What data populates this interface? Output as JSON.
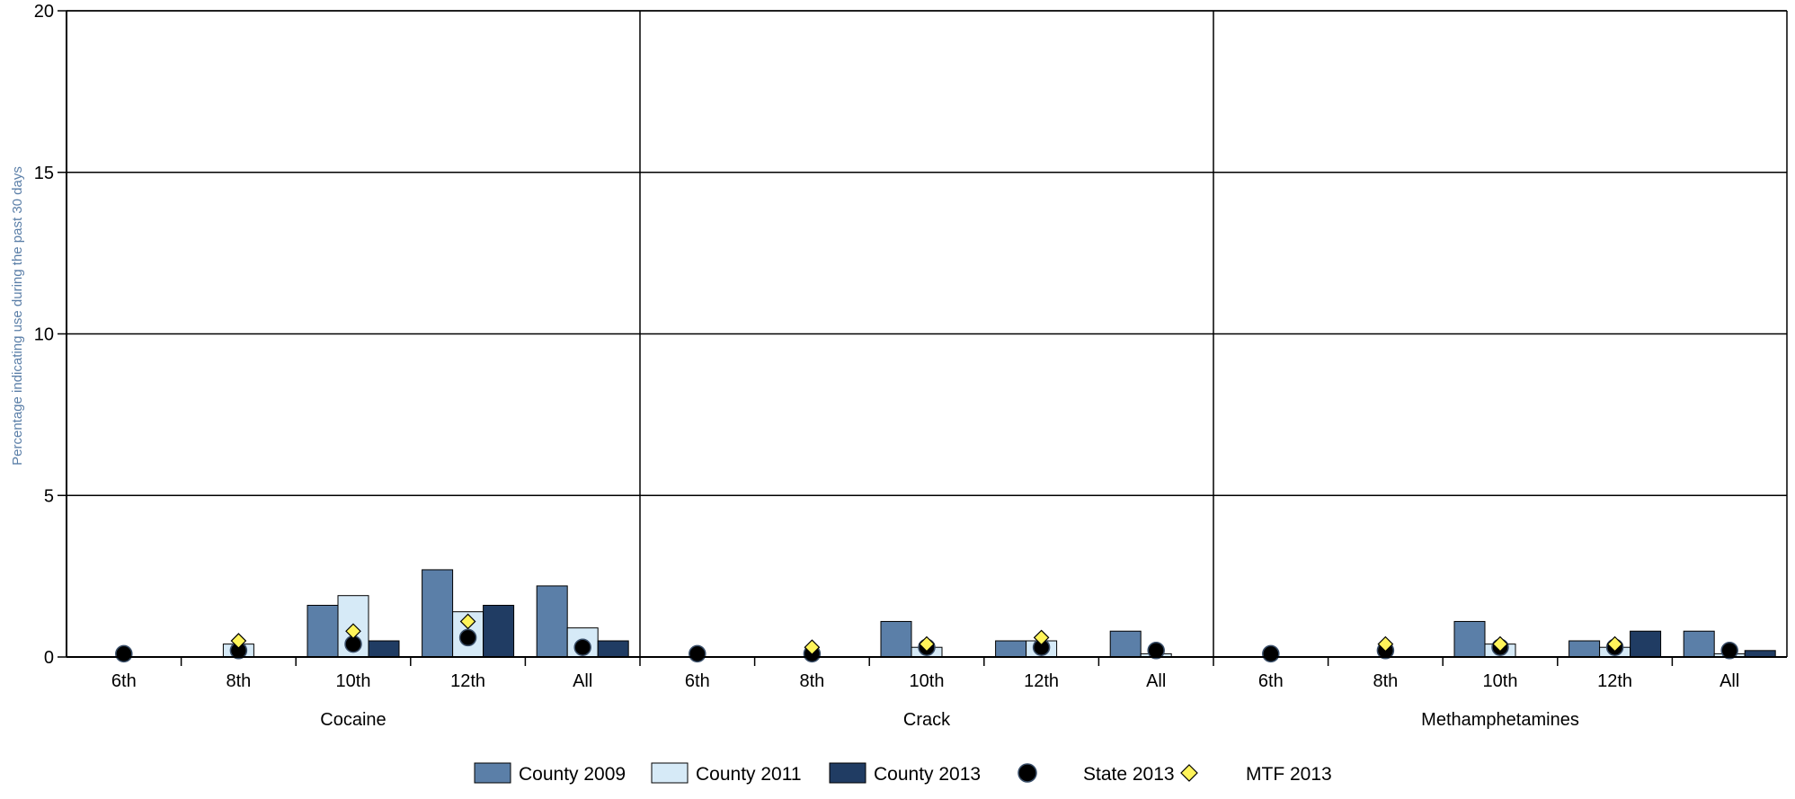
{
  "chart_data": {
    "type": "bar",
    "ylabel": "Percentage indicating use during the past 30 days",
    "ylim": [
      0,
      20
    ],
    "yticks": [
      0,
      5,
      10,
      15,
      20
    ],
    "grid": true,
    "legend_position": "bottom",
    "categories": [
      "6th",
      "8th",
      "10th",
      "12th",
      "All"
    ],
    "groups": [
      "Cocaine",
      "Crack",
      "Methamphetamines"
    ],
    "series": [
      {
        "name": "County 2009",
        "kind": "bar",
        "color": "#5b7fa8",
        "values": [
          [
            0,
            0,
            1.6,
            2.7,
            2.2
          ],
          [
            0,
            0,
            1.1,
            0.5,
            0.8
          ],
          [
            0,
            0,
            1.1,
            0.5,
            0.8
          ]
        ]
      },
      {
        "name": "County 2011",
        "kind": "bar",
        "color": "#d6eaf7",
        "values": [
          [
            0,
            0.4,
            1.9,
            1.4,
            0.9
          ],
          [
            0,
            0,
            0.3,
            0.5,
            0.1
          ],
          [
            0,
            0,
            0.4,
            0.3,
            0.1
          ]
        ]
      },
      {
        "name": "County 2013",
        "kind": "bar",
        "color": "#203c63",
        "values": [
          [
            0,
            0,
            0.5,
            1.6,
            0.5
          ],
          [
            0,
            0,
            0,
            0,
            0
          ],
          [
            0,
            0,
            0,
            0.8,
            0.2
          ]
        ]
      },
      {
        "name": "State 2013",
        "kind": "circle",
        "color": "#000000",
        "values": [
          [
            0.1,
            0.2,
            0.4,
            0.6,
            0.3
          ],
          [
            0.1,
            0.1,
            0.3,
            0.3,
            0.2
          ],
          [
            0.1,
            0.2,
            0.3,
            0.3,
            0.2
          ]
        ]
      },
      {
        "name": "MTF 2013",
        "kind": "diamond",
        "color": "#fff45a",
        "values": [
          [
            null,
            0.5,
            0.8,
            1.1,
            null
          ],
          [
            null,
            0.3,
            0.4,
            0.6,
            null
          ],
          [
            null,
            0.4,
            0.4,
            0.4,
            null
          ]
        ]
      }
    ]
  }
}
